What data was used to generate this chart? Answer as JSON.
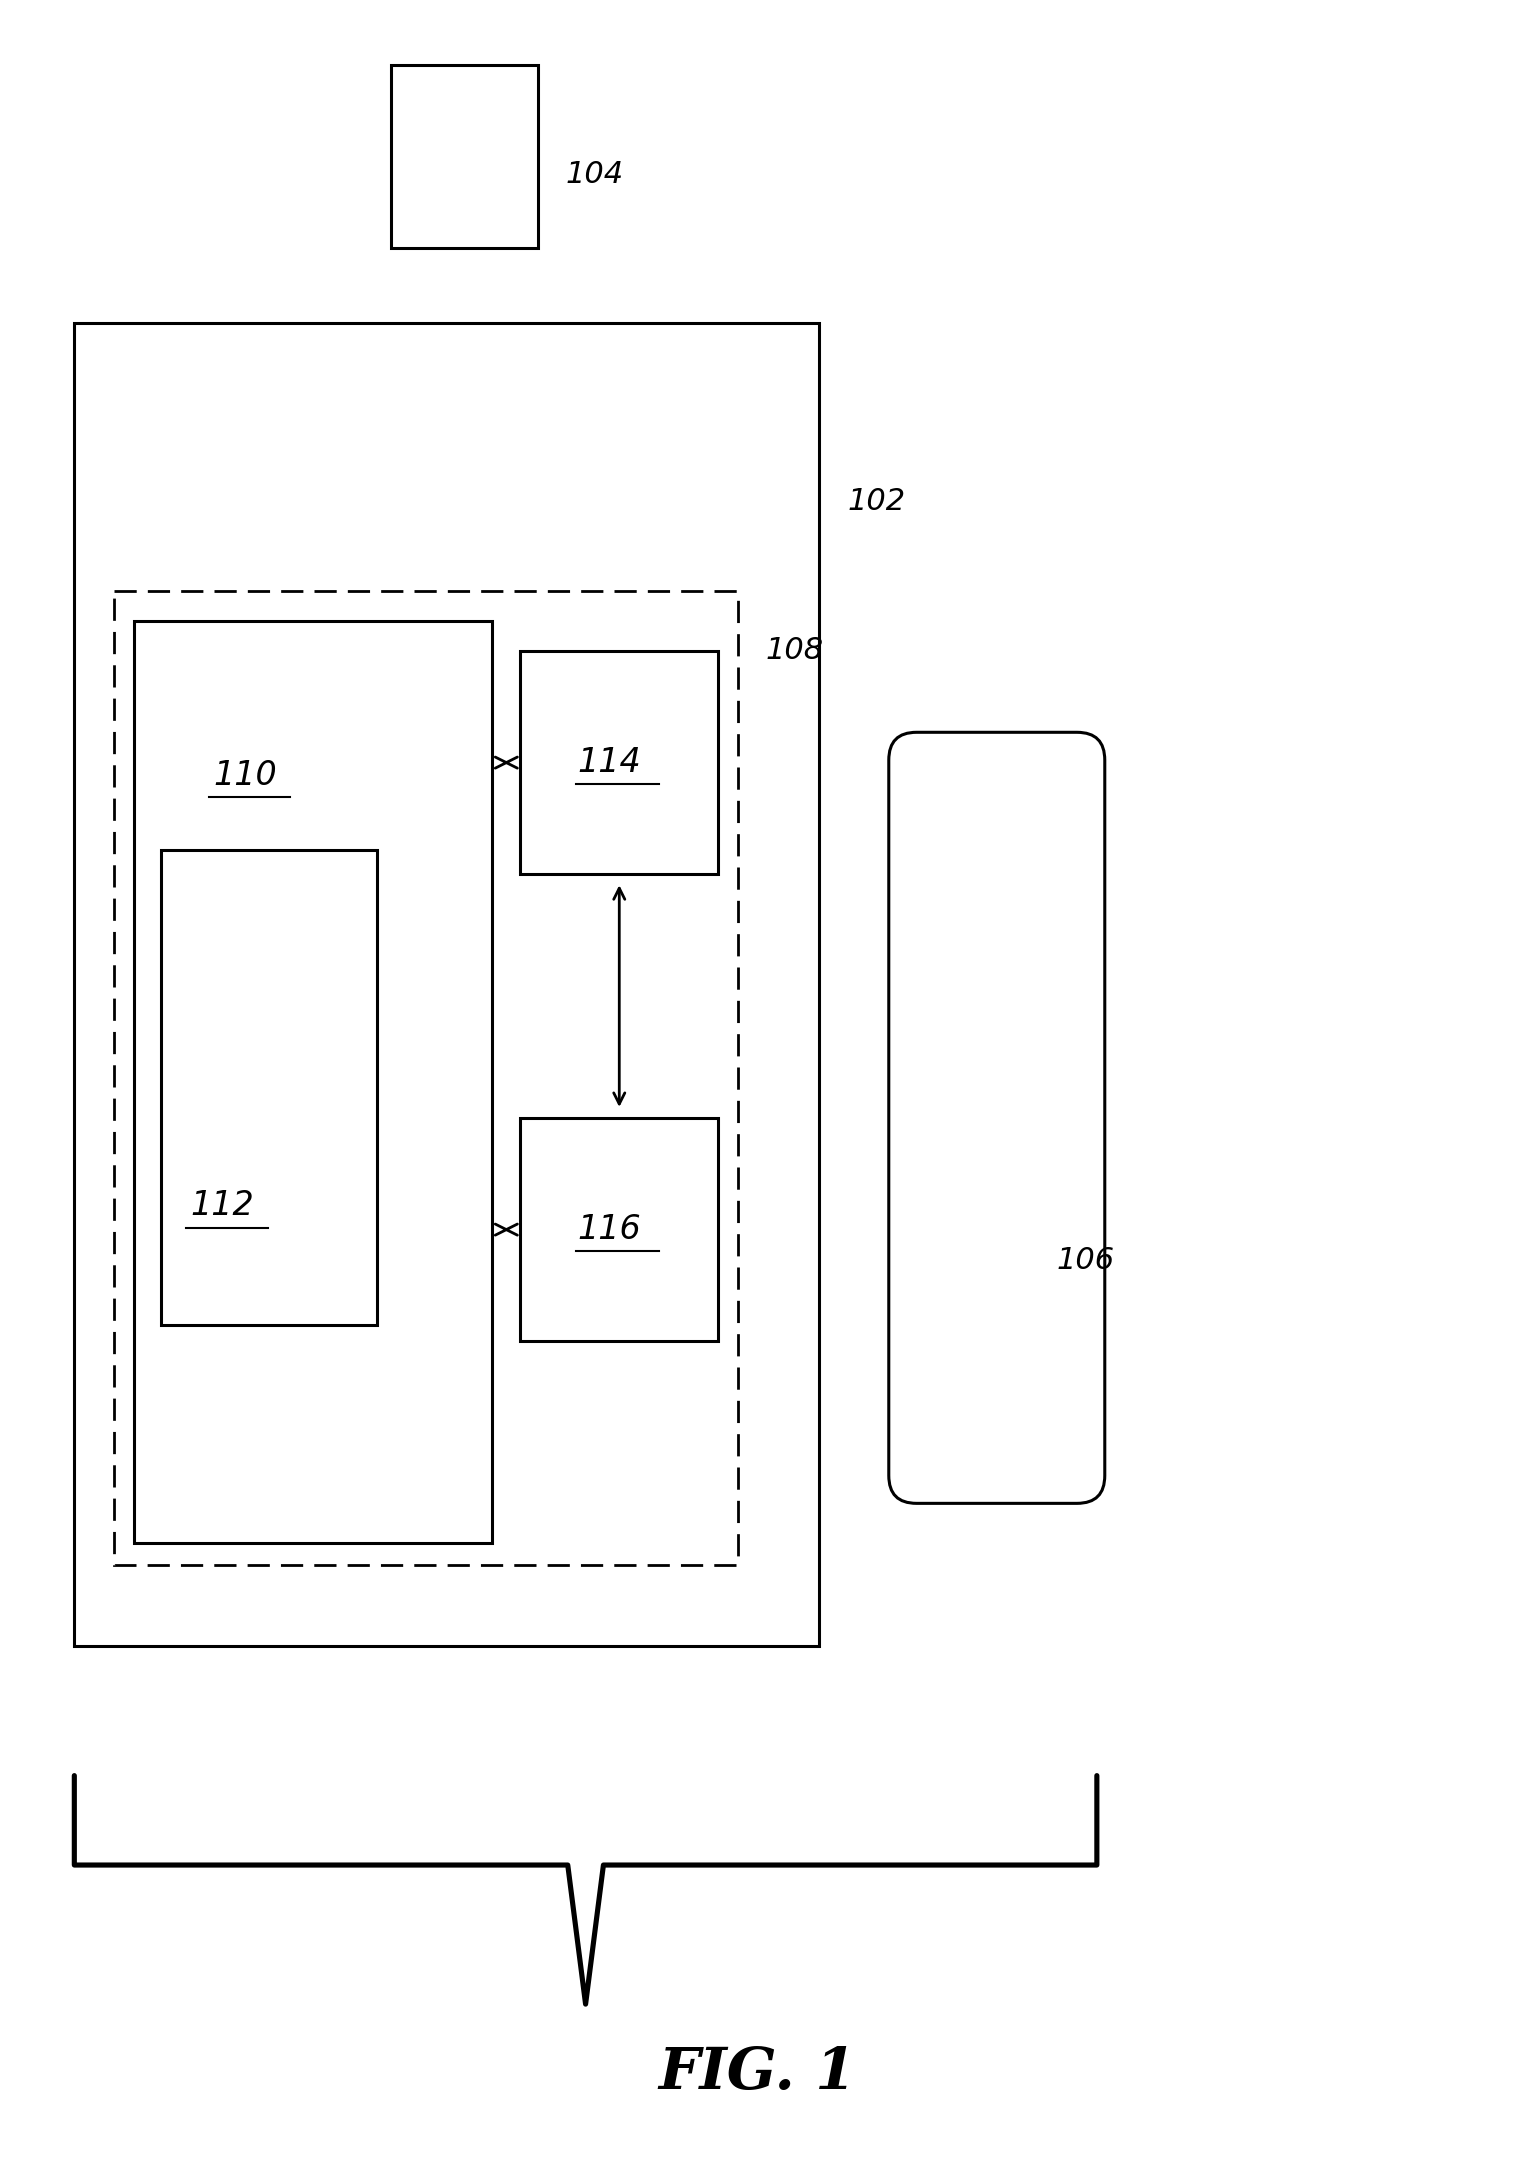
{
  "bg_color": "#ffffff",
  "fig_width": 15.14,
  "fig_height": 21.81,
  "label_104": "104",
  "label_102": "102",
  "label_108": "108",
  "label_106": "106",
  "label_110": "110",
  "label_112": "112",
  "label_114": "114",
  "label_116": "116",
  "fig_label": "FIG. 1",
  "line_color": "#000000"
}
